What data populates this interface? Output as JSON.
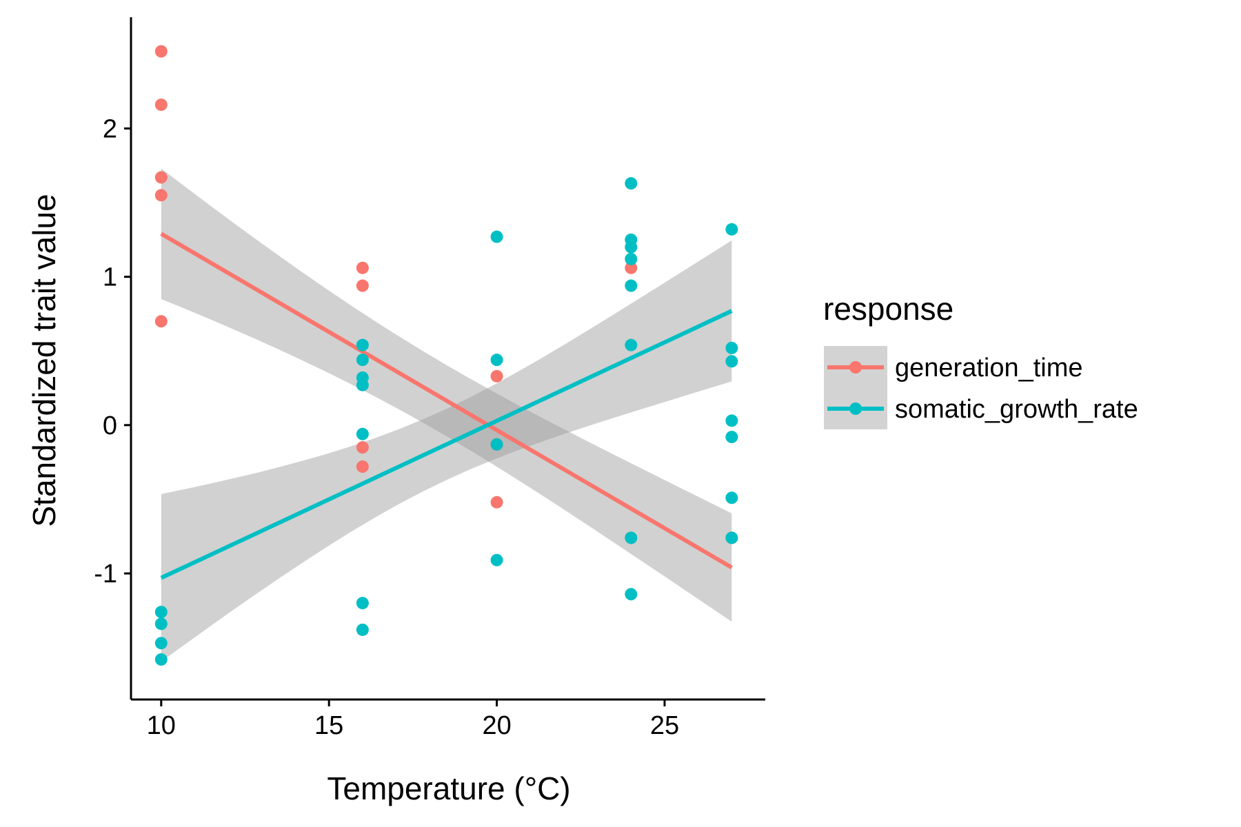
{
  "chart_data": {
    "type": "scatter",
    "title": "",
    "xlabel": "Temperature (°C)",
    "ylabel": "Standardized trait value",
    "xlim": [
      9.1,
      28.0
    ],
    "ylim": [
      -1.85,
      2.75
    ],
    "x_ticks": [
      10,
      15,
      20,
      25
    ],
    "x_tick_labels": [
      "10",
      "15",
      "20",
      "25"
    ],
    "y_ticks": [
      -1,
      0,
      1,
      2
    ],
    "y_tick_labels": [
      "-1",
      "0",
      "1",
      "2"
    ],
    "grid": false,
    "legend": {
      "title": "response",
      "position": "right",
      "entries": [
        "generation_time",
        "somatic_growth_rate"
      ]
    },
    "series": [
      {
        "name": "generation_time",
        "color": "#F8766D",
        "points": [
          [
            10,
            2.52
          ],
          [
            10,
            2.16
          ],
          [
            10,
            1.67
          ],
          [
            10,
            1.55
          ],
          [
            10,
            0.7
          ],
          [
            16,
            1.06
          ],
          [
            16,
            0.94
          ],
          [
            16,
            -0.15
          ],
          [
            16,
            -0.28
          ],
          [
            20,
            0.33
          ],
          [
            20,
            -0.52
          ],
          [
            20,
            -0.13
          ],
          [
            24,
            1.06
          ],
          [
            24,
            -0.76
          ],
          [
            27,
            -0.76
          ]
        ],
        "fit": {
          "x": [
            10,
            27
          ],
          "y": [
            1.29,
            -0.96
          ],
          "ci_lower": [
            0.85,
            -1.33
          ],
          "ci_upper": [
            1.73,
            -0.6
          ]
        }
      },
      {
        "name": "somatic_growth_rate",
        "color": "#00BFC4",
        "points": [
          [
            10,
            -1.26
          ],
          [
            10,
            -1.34
          ],
          [
            10,
            -1.47
          ],
          [
            10,
            -1.58
          ],
          [
            16,
            0.54
          ],
          [
            16,
            0.44
          ],
          [
            16,
            0.32
          ],
          [
            16,
            0.27
          ],
          [
            16,
            -0.06
          ],
          [
            16,
            -1.2
          ],
          [
            16,
            -1.38
          ],
          [
            20,
            1.27
          ],
          [
            20,
            0.44
          ],
          [
            20,
            -0.13
          ],
          [
            20,
            -0.91
          ],
          [
            24,
            1.63
          ],
          [
            24,
            1.25
          ],
          [
            24,
            1.2
          ],
          [
            24,
            1.12
          ],
          [
            24,
            0.94
          ],
          [
            24,
            0.54
          ],
          [
            24,
            -0.76
          ],
          [
            24,
            -1.14
          ],
          [
            27,
            1.32
          ],
          [
            27,
            0.52
          ],
          [
            27,
            0.43
          ],
          [
            27,
            0.03
          ],
          [
            27,
            -0.08
          ],
          [
            27,
            -0.49
          ],
          [
            27,
            -0.76
          ]
        ],
        "fit": {
          "x": [
            10,
            27
          ],
          "y": [
            -1.03,
            0.77
          ],
          "ci_lower": [
            -1.59,
            0.29
          ],
          "ci_upper": [
            -0.46,
            1.24
          ]
        }
      }
    ],
    "ci_color": "#999999"
  }
}
